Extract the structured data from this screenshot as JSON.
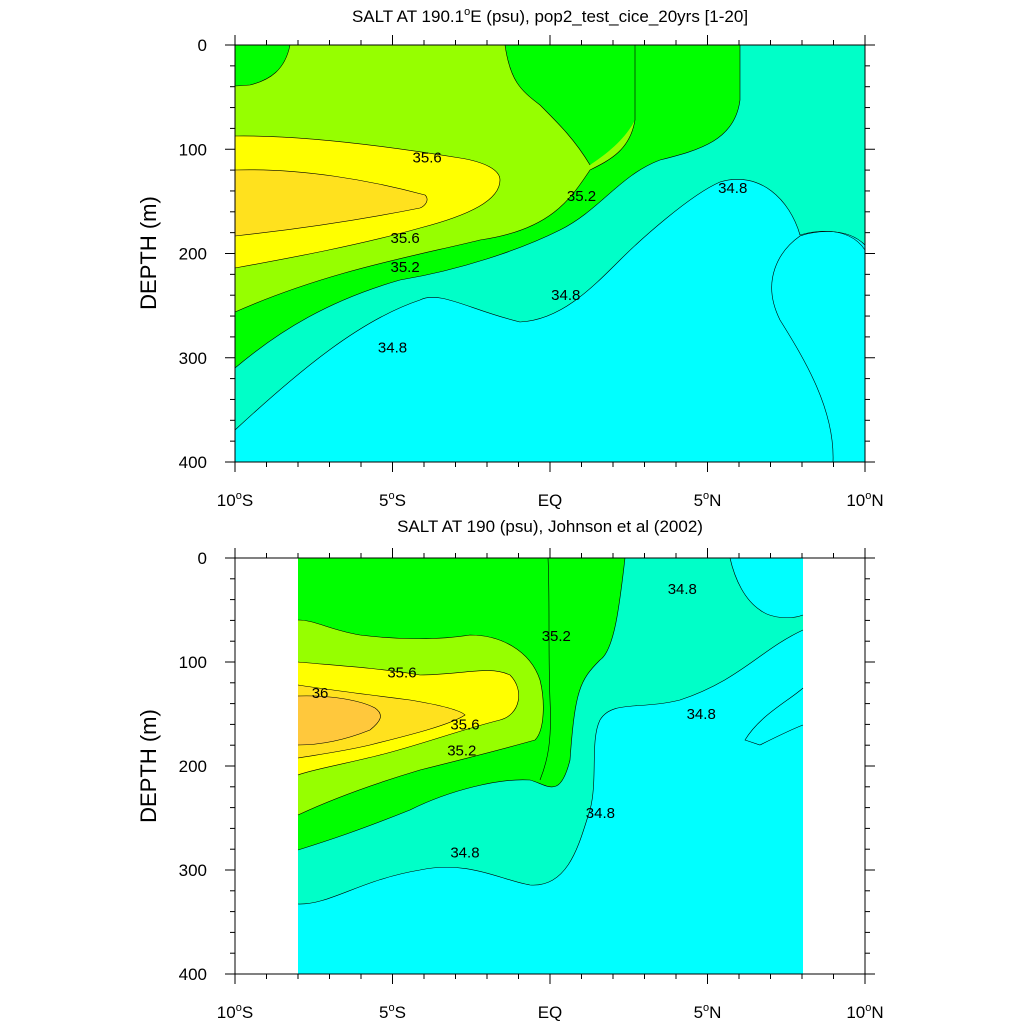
{
  "chart_data": [
    {
      "type": "contour",
      "title_parts": [
        "SALT AT 190.1",
        "o",
        "E (psu), pop2_test_cice_20yrs [1-20]"
      ],
      "ylabel": "DEPTH (m)",
      "xlim": [
        -10,
        10
      ],
      "ylim": [
        0,
        400
      ],
      "y_reversed": true,
      "y_ticks": [
        "0",
        "100",
        "200",
        "300",
        "400"
      ],
      "x_ticks": [
        {
          "num": "10",
          "deg": "o",
          "hem": "S"
        },
        {
          "num": "5",
          "deg": "o",
          "hem": "S"
        },
        {
          "num": "EQ",
          "deg": "",
          "hem": ""
        },
        {
          "num": "5",
          "deg": "o",
          "hem": "N"
        },
        {
          "num": "10",
          "deg": "o",
          "hem": "N"
        }
      ],
      "contour_labels": [
        {
          "text": "35.6",
          "lat": -3.9,
          "depth": 108
        },
        {
          "text": "35.6",
          "lat": -4.6,
          "depth": 185
        },
        {
          "text": "35.2",
          "lat": -4.6,
          "depth": 213
        },
        {
          "text": "34.8",
          "lat": -5.0,
          "depth": 290
        },
        {
          "text": "35.2",
          "lat": 1.0,
          "depth": 145
        },
        {
          "text": "34.8",
          "lat": 0.5,
          "depth": 240
        },
        {
          "text": "34.8",
          "lat": 5.8,
          "depth": 137
        }
      ],
      "colors": [
        "#00ffff",
        "#00ffc8",
        "#00ff00",
        "#96ff00",
        "#ffff00",
        "#ffe11e",
        "#ffc83c"
      ]
    },
    {
      "type": "contour",
      "title_parts": [
        "SALT AT 190 (psu), Johnson et al (2002)"
      ],
      "ylabel": "DEPTH (m)",
      "xlim": [
        -10,
        10
      ],
      "ylim": [
        0,
        400
      ],
      "y_reversed": true,
      "data_lat_range": [
        -8,
        8
      ],
      "y_ticks": [
        "0",
        "100",
        "200",
        "300",
        "400"
      ],
      "x_ticks": [
        {
          "num": "10",
          "deg": "o",
          "hem": "S"
        },
        {
          "num": "5",
          "deg": "o",
          "hem": "S"
        },
        {
          "num": "EQ",
          "deg": "",
          "hem": ""
        },
        {
          "num": "5",
          "deg": "o",
          "hem": "N"
        },
        {
          "num": "10",
          "deg": "o",
          "hem": "N"
        }
      ],
      "contour_labels": [
        {
          "text": "36",
          "lat": -7.3,
          "depth": 130
        },
        {
          "text": "35.6",
          "lat": -4.7,
          "depth": 110
        },
        {
          "text": "35.6",
          "lat": -2.7,
          "depth": 160
        },
        {
          "text": "35.2",
          "lat": -2.8,
          "depth": 185
        },
        {
          "text": "34.8",
          "lat": -2.7,
          "depth": 283
        },
        {
          "text": "35.2",
          "lat": 0.2,
          "depth": 75
        },
        {
          "text": "34.8",
          "lat": 4.2,
          "depth": 30
        },
        {
          "text": "34.8",
          "lat": 4.8,
          "depth": 150
        },
        {
          "text": "34.8",
          "lat": 1.6,
          "depth": 245
        }
      ]
    }
  ]
}
